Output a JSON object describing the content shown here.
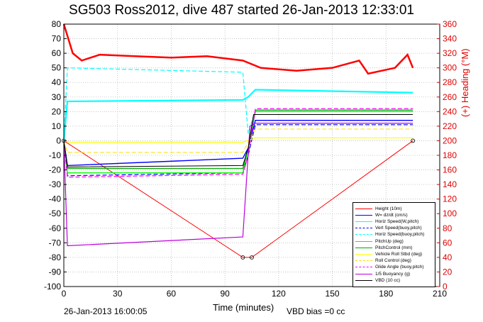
{
  "title": "SG503 Ross2012, dive 487 started 26-Jan-2013 12:33:01",
  "footer_left": "26-Jan-2013 16:00:05",
  "footer_mid": "VBD bias =0 cc",
  "chart_data": {
    "type": "line",
    "xlabel": "Time (minutes)",
    "ylabel_right": "(+) Heading (°M)",
    "xlim": [
      0,
      210
    ],
    "ylim": [
      -100,
      80
    ],
    "ylim_right": [
      0,
      360
    ],
    "xticks": [
      "0",
      "30",
      "60",
      "90",
      "120",
      "150",
      "180",
      "210"
    ],
    "yticks": [
      "80",
      "70",
      "60",
      "50",
      "40",
      "30",
      "20",
      "10",
      "0",
      "-10",
      "-20",
      "-30",
      "-40",
      "-50",
      "-60",
      "-70",
      "-80",
      "-90",
      "-100"
    ],
    "yticks_right": [
      "360",
      "340",
      "320",
      "300",
      "280",
      "260",
      "240",
      "220",
      "200",
      "180",
      "160",
      "140",
      "120",
      "100",
      "80",
      "60",
      "40",
      "20",
      "0"
    ],
    "grid": true,
    "legend_position": "lower-right",
    "colors": {
      "height": "#ff0000",
      "w": "#0000ff",
      "horz_pitch": "#00ffff",
      "vert_buoy": "#0000ff",
      "horz_buoy": "#00ffff",
      "pitchup": "#00ff00",
      "pitchcontrol": "#00aa00",
      "roll_fbfd": "#ffff00",
      "roll_control": "#ffdd00",
      "glide": "#ff00ff",
      "buoy": "#bb00dd",
      "vbd": "#000000",
      "heading": "#ff0000"
    },
    "series": [
      {
        "name": "Height (10m)",
        "x": [
          0,
          100,
          105,
          195
        ],
        "y": [
          0,
          -80,
          -80,
          0
        ]
      },
      {
        "name": "W= dz/dt (cm/s)",
        "x": [
          0,
          2,
          100,
          103,
          107,
          195
        ],
        "y": [
          0,
          -17,
          -12,
          -5,
          14,
          14
        ]
      },
      {
        "name": "Horiz Speed(W,pitch)",
        "x": [
          0,
          2,
          100,
          103,
          107,
          195
        ],
        "y": [
          0,
          27,
          28,
          30,
          35,
          33
        ]
      },
      {
        "name": "Vert Speed(buoy,pitch)",
        "x": [
          0,
          2,
          100,
          103,
          107,
          195
        ],
        "y": [
          0,
          -24,
          -22,
          -10,
          11,
          11
        ]
      },
      {
        "name": "Horiz Speed(buoy,pitch)",
        "x": [
          0,
          2,
          100,
          103,
          107,
          195
        ],
        "y": [
          0,
          50,
          47,
          5,
          21,
          21
        ]
      },
      {
        "name": "PitchUp (deg)",
        "x": [
          0,
          2,
          100,
          103,
          107,
          195
        ],
        "y": [
          0,
          -22,
          -22,
          -5,
          20,
          20
        ]
      },
      {
        "name": "PitchControl (mm)",
        "x": [
          0,
          2,
          100,
          103,
          107,
          195
        ],
        "y": [
          0,
          -19,
          -19,
          -5,
          21,
          21
        ]
      },
      {
        "name": "Vehicle Roll Stbd (deg)",
        "x": [
          0,
          3,
          100,
          107,
          195
        ],
        "y": [
          0,
          -1,
          -1,
          2,
          2
        ]
      },
      {
        "name": "Roll Control (deg)",
        "x": [
          0,
          2,
          100,
          107,
          195
        ],
        "y": [
          0,
          -8,
          -8,
          8,
          8
        ]
      },
      {
        "name": "Glide Angle (buoy,pitch)",
        "x": [
          0,
          2,
          100,
          103,
          107,
          195
        ],
        "y": [
          0,
          -25,
          -23,
          -10,
          22,
          22
        ]
      },
      {
        "name": "1/5 Buoyancy (g)",
        "x": [
          0,
          2,
          100,
          104,
          107,
          195
        ],
        "y": [
          0,
          -72,
          -66,
          10,
          12,
          12
        ]
      },
      {
        "name": "VBD (10 cc)",
        "x": [
          0,
          2,
          100,
          103,
          106,
          195
        ],
        "y": [
          0,
          -18,
          -17,
          -5,
          18,
          18
        ]
      }
    ],
    "heading_series": {
      "x": [
        0,
        5,
        10,
        20,
        40,
        60,
        80,
        100,
        110,
        130,
        150,
        165,
        170,
        185,
        192,
        195
      ],
      "y": [
        360,
        320,
        310,
        318,
        316,
        314,
        316,
        310,
        300,
        296,
        300,
        310,
        292,
        300,
        318,
        300
      ]
    }
  }
}
